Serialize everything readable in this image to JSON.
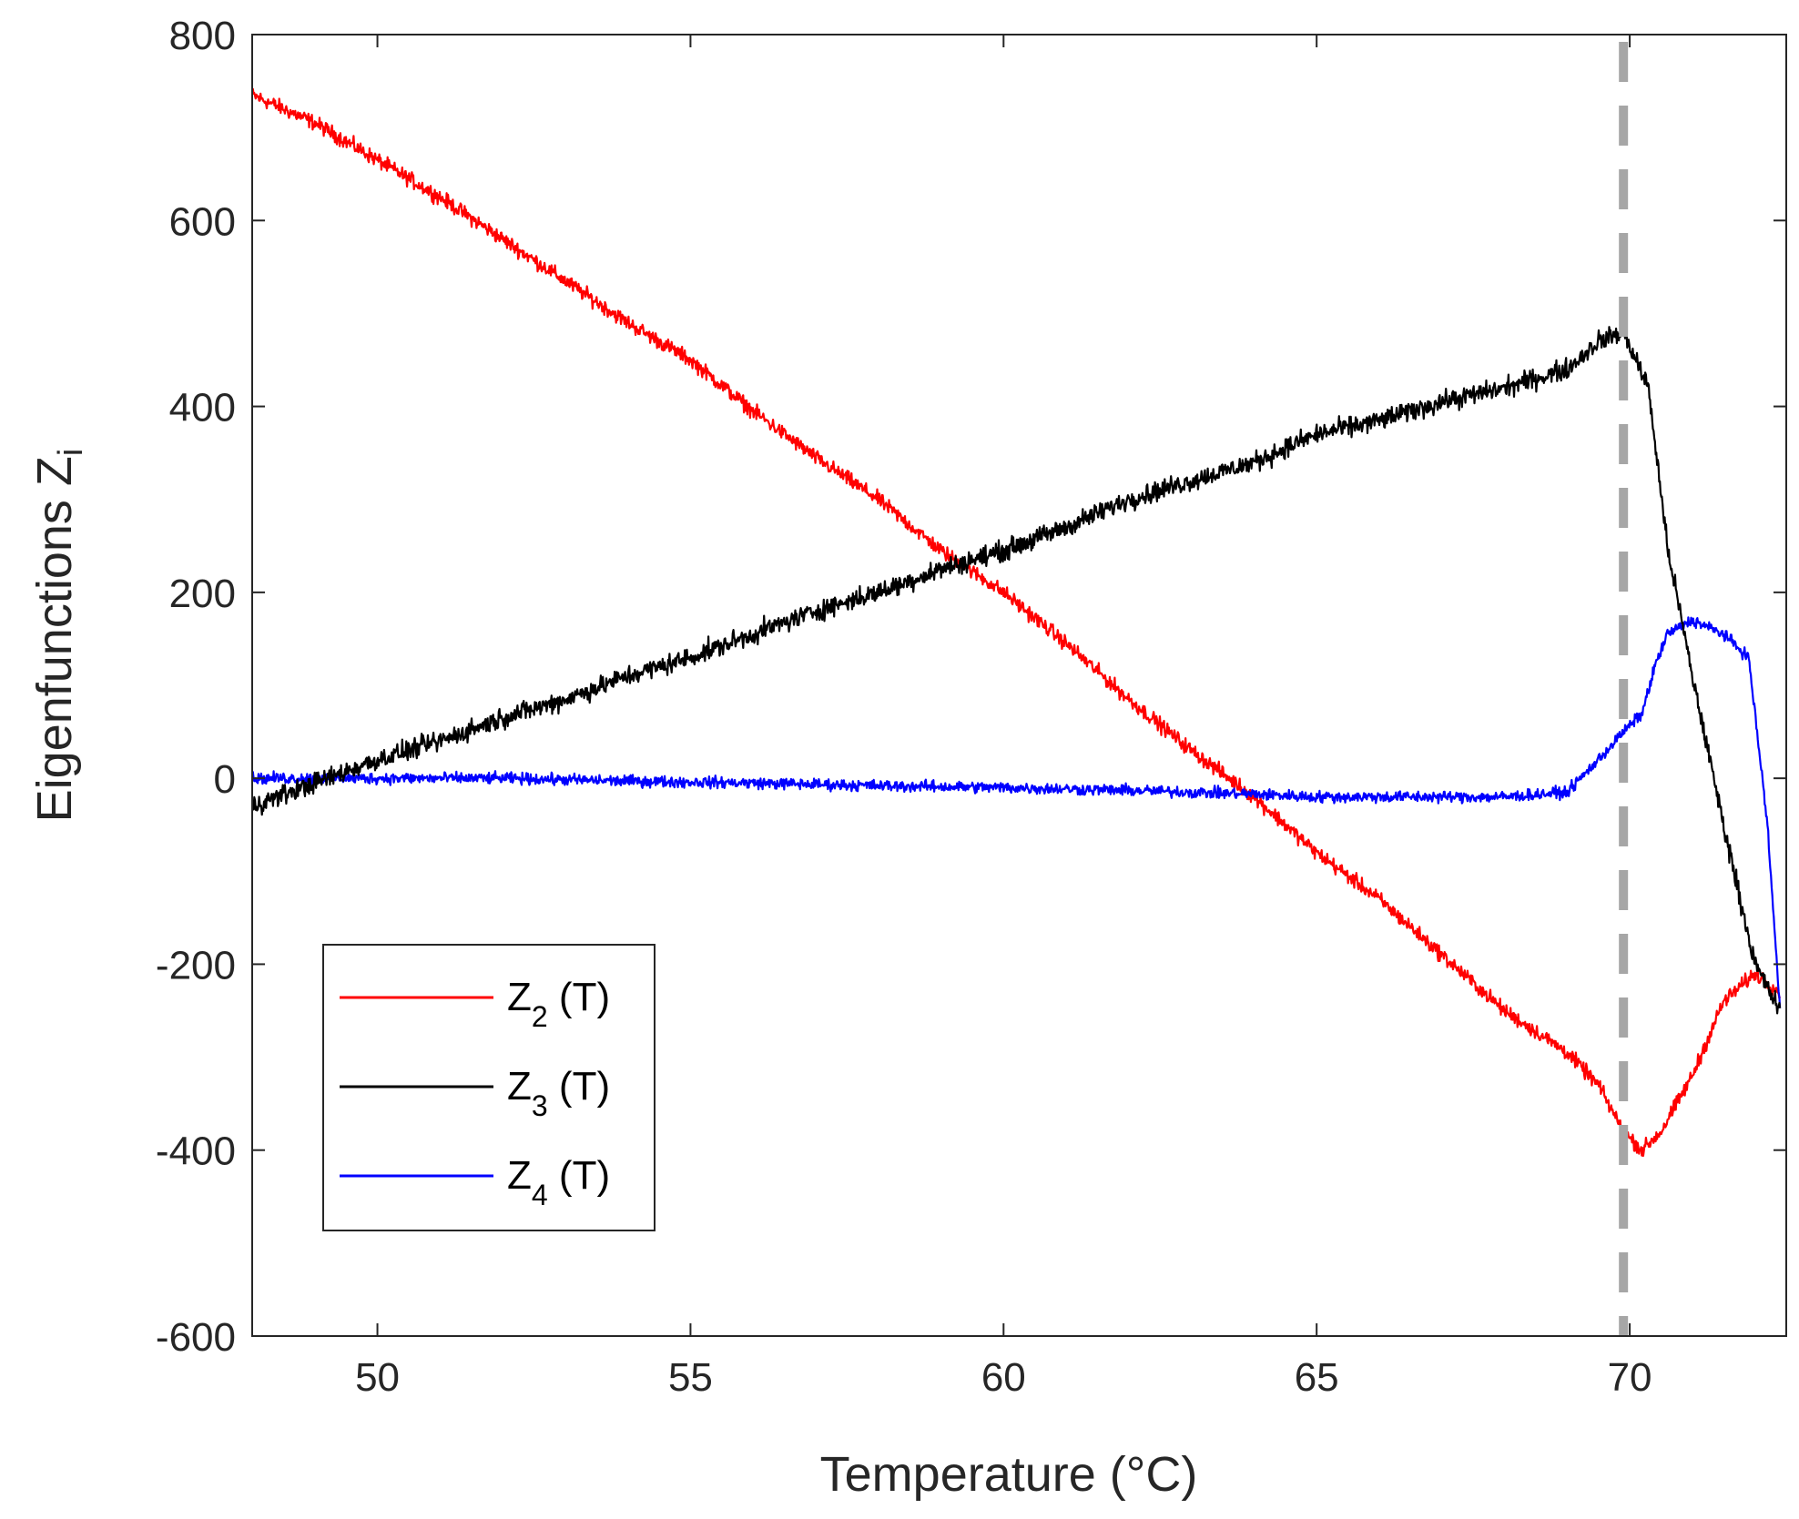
{
  "chart_data": {
    "type": "line",
    "title": "",
    "xlabel": "Temperature (°C)",
    "ylabel": {
      "main": "Eigenfunctions Z",
      "subscript": "i"
    },
    "xlim": [
      48,
      72.5
    ],
    "ylim": [
      -600,
      800
    ],
    "xticks": [
      50,
      55,
      60,
      65,
      70
    ],
    "xtick_labels": [
      "50",
      "55",
      "60",
      "65",
      "70"
    ],
    "yticks": [
      -600,
      -400,
      -200,
      0,
      200,
      400,
      600,
      800
    ],
    "ytick_labels": [
      "-600",
      "-400",
      "-200",
      "0",
      "200",
      "400",
      "600",
      "800"
    ],
    "grid": false,
    "legend_position": "lower-left",
    "vertical_reference": {
      "x": 69.9,
      "style": "dashed",
      "color": "#a6a6a6"
    },
    "series": [
      {
        "name": "Z2 (T)",
        "label_main": "Z",
        "label_sub": "2",
        "label_suffix": " (T)",
        "color": "#ff0000",
        "noise": 12,
        "x": [
          48,
          49,
          50,
          51,
          52,
          53,
          54,
          55,
          56,
          57,
          58,
          59,
          60,
          61,
          62,
          63,
          64,
          65,
          66,
          67,
          68,
          69,
          69.5,
          69.9,
          70.2,
          70.5,
          71,
          71.5,
          72,
          72.4
        ],
        "y": [
          735,
          705,
          665,
          625,
          580,
          535,
          490,
          450,
          395,
          345,
          300,
          245,
          200,
          145,
          85,
          30,
          -20,
          -80,
          -130,
          -190,
          -250,
          -295,
          -330,
          -380,
          -400,
          -380,
          -320,
          -240,
          -210,
          -230
        ]
      },
      {
        "name": "Z3 (T)",
        "label_main": "Z",
        "label_sub": "3",
        "label_suffix": " (T)",
        "color": "#000000",
        "noise": 16,
        "x": [
          48,
          49,
          50,
          51,
          52,
          53,
          54,
          55,
          56,
          57,
          58,
          59,
          60,
          61,
          62,
          63,
          64,
          65,
          66,
          67,
          68,
          69,
          69.5,
          69.9,
          70.3,
          70.6,
          71,
          71.5,
          72,
          72.4
        ],
        "y": [
          -30,
          -5,
          20,
          40,
          65,
          85,
          110,
          130,
          155,
          180,
          200,
          225,
          245,
          270,
          300,
          320,
          340,
          370,
          385,
          405,
          420,
          440,
          470,
          480,
          420,
          250,
          110,
          -50,
          -200,
          -250
        ]
      },
      {
        "name": "Z4 (T)",
        "label_main": "Z",
        "label_sub": "4",
        "label_suffix": " (T)",
        "color": "#0000ff",
        "noise": 9,
        "x": [
          48,
          50,
          52,
          54,
          56,
          58,
          60,
          62,
          64,
          65,
          66,
          67,
          68,
          69,
          69.5,
          69.9,
          70.2,
          70.4,
          70.6,
          71,
          71.5,
          71.9,
          72.2,
          72.4
        ],
        "y": [
          0,
          0,
          0,
          -3,
          -5,
          -8,
          -10,
          -13,
          -17,
          -20,
          -20,
          -20,
          -20,
          -15,
          20,
          50,
          70,
          120,
          155,
          170,
          155,
          130,
          -50,
          -250
        ]
      }
    ]
  }
}
